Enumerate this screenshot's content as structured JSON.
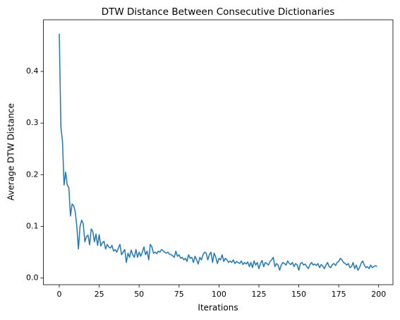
{
  "chart_data": {
    "type": "line",
    "title": "DTW Distance Between Consecutive Dictionaries",
    "x_label": "Iterations",
    "y_label": "Average DTW Distance",
    "x": [
      0,
      1,
      2,
      3,
      4,
      5,
      6,
      7,
      8,
      9,
      10,
      11,
      12,
      13,
      14,
      15,
      16,
      17,
      18,
      19,
      20,
      21,
      22,
      23,
      24,
      25,
      26,
      27,
      28,
      29,
      30,
      31,
      32,
      33,
      34,
      35,
      36,
      37,
      38,
      39,
      40,
      41,
      42,
      43,
      44,
      45,
      46,
      47,
      48,
      49,
      50,
      51,
      52,
      53,
      54,
      55,
      56,
      57,
      58,
      59,
      60,
      61,
      62,
      63,
      64,
      65,
      66,
      67,
      68,
      69,
      70,
      71,
      72,
      73,
      74,
      75,
      76,
      77,
      78,
      79,
      80,
      81,
      82,
      83,
      84,
      85,
      86,
      87,
      88,
      89,
      90,
      91,
      92,
      93,
      94,
      95,
      96,
      97,
      98,
      99,
      100,
      101,
      102,
      103,
      104,
      105,
      106,
      107,
      108,
      109,
      110,
      111,
      112,
      113,
      114,
      115,
      116,
      117,
      118,
      119,
      120,
      121,
      122,
      123,
      124,
      125,
      126,
      127,
      128,
      129,
      130,
      131,
      132,
      133,
      134,
      135,
      136,
      137,
      138,
      139,
      140,
      141,
      142,
      143,
      144,
      145,
      146,
      147,
      148,
      149,
      150,
      151,
      152,
      153,
      154,
      155,
      156,
      157,
      158,
      159,
      160,
      161,
      162,
      163,
      164,
      165,
      166,
      167,
      168,
      169,
      170,
      171,
      172,
      173,
      174,
      175,
      176,
      177,
      178,
      179,
      180,
      181,
      182,
      183,
      184,
      185,
      186,
      187,
      188,
      189,
      190,
      191,
      192,
      193,
      194,
      195,
      196,
      197,
      198,
      199
    ],
    "series": [
      {
        "color": "#1f77b4",
        "values": [
          0.473,
          0.293,
          0.265,
          0.18,
          0.205,
          0.18,
          0.175,
          0.12,
          0.143,
          0.14,
          0.128,
          0.1,
          0.056,
          0.1,
          0.112,
          0.105,
          0.07,
          0.08,
          0.083,
          0.064,
          0.095,
          0.09,
          0.07,
          0.085,
          0.063,
          0.084,
          0.062,
          0.068,
          0.071,
          0.056,
          0.065,
          0.06,
          0.058,
          0.063,
          0.052,
          0.055,
          0.05,
          0.058,
          0.065,
          0.045,
          0.05,
          0.055,
          0.03,
          0.048,
          0.04,
          0.054,
          0.045,
          0.04,
          0.055,
          0.04,
          0.05,
          0.042,
          0.05,
          0.06,
          0.045,
          0.052,
          0.035,
          0.065,
          0.06,
          0.048,
          0.05,
          0.047,
          0.052,
          0.05,
          0.055,
          0.053,
          0.05,
          0.048,
          0.05,
          0.046,
          0.045,
          0.043,
          0.04,
          0.052,
          0.042,
          0.045,
          0.038,
          0.04,
          0.035,
          0.038,
          0.032,
          0.045,
          0.038,
          0.04,
          0.03,
          0.042,
          0.035,
          0.027,
          0.04,
          0.035,
          0.045,
          0.05,
          0.048,
          0.035,
          0.045,
          0.05,
          0.03,
          0.048,
          0.04,
          0.028,
          0.038,
          0.035,
          0.045,
          0.032,
          0.038,
          0.035,
          0.03,
          0.033,
          0.03,
          0.035,
          0.028,
          0.032,
          0.03,
          0.028,
          0.033,
          0.026,
          0.03,
          0.027,
          0.031,
          0.022,
          0.03,
          0.02,
          0.033,
          0.025,
          0.03,
          0.018,
          0.028,
          0.034,
          0.022,
          0.03,
          0.028,
          0.025,
          0.032,
          0.035,
          0.04,
          0.022,
          0.028,
          0.025,
          0.015,
          0.025,
          0.03,
          0.028,
          0.025,
          0.033,
          0.028,
          0.026,
          0.03,
          0.022,
          0.028,
          0.025,
          0.015,
          0.028,
          0.03,
          0.025,
          0.027,
          0.022,
          0.018,
          0.026,
          0.03,
          0.025,
          0.027,
          0.024,
          0.028,
          0.02,
          0.026,
          0.023,
          0.018,
          0.025,
          0.03,
          0.022,
          0.02,
          0.026,
          0.028,
          0.024,
          0.03,
          0.032,
          0.038,
          0.035,
          0.03,
          0.028,
          0.025,
          0.028,
          0.02,
          0.022,
          0.03,
          0.018,
          0.025,
          0.015,
          0.02,
          0.028,
          0.033,
          0.025,
          0.02,
          0.022,
          0.018,
          0.025,
          0.02,
          0.022,
          0.024,
          0.022
        ]
      }
    ],
    "xlim": [
      -9.95,
      208.95
    ],
    "xticks": [
      0,
      25,
      50,
      75,
      100,
      125,
      150,
      175,
      200
    ],
    "ylim": [
      -0.013,
      0.5
    ],
    "yticks": [
      {
        "value": 0,
        "label": "0.0"
      },
      0.1,
      0.2,
      0.3,
      0.4
    ],
    "grid": false
  }
}
